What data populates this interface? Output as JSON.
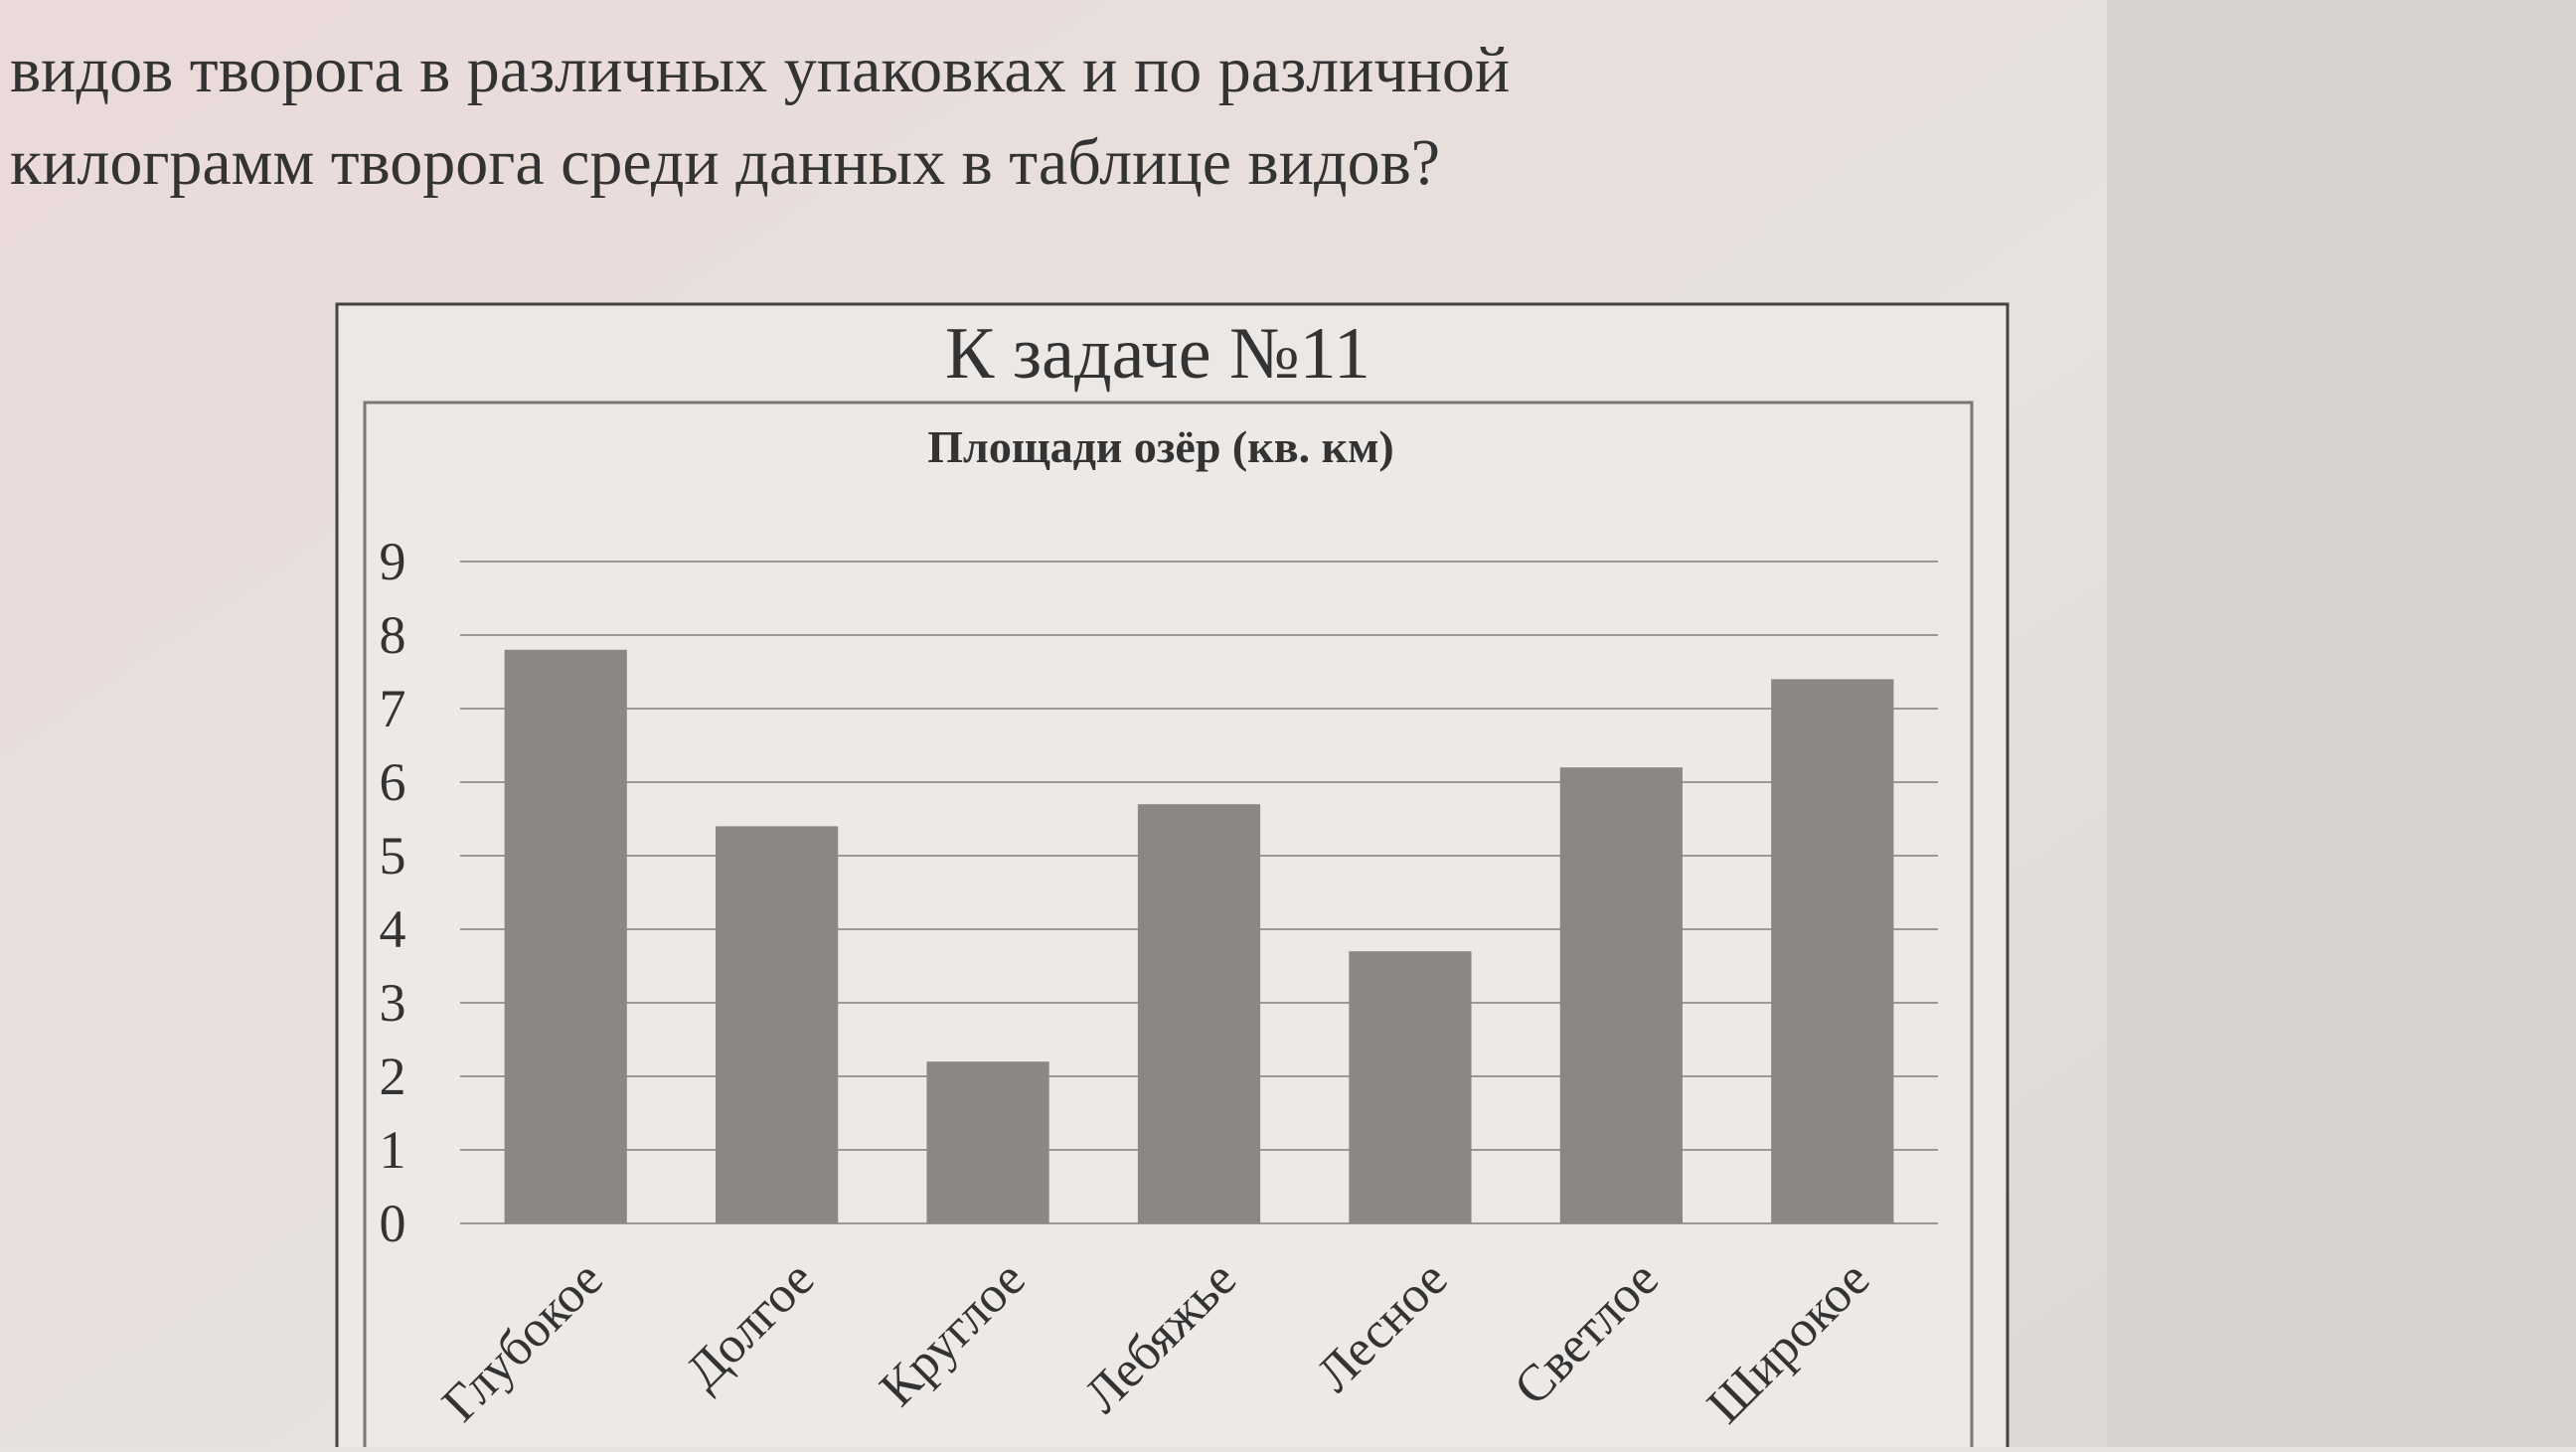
{
  "header": {
    "lines": [
      "видов творога в различных упаковках и по различной",
      "килограмм творога среди данных в таблице видов?"
    ],
    "caption": "К задаче №11"
  },
  "chart_data": {
    "type": "bar",
    "title": "Площади озёр (кв. км)",
    "categories": [
      "Глубокое",
      "Долгое",
      "Круглое",
      "Лебяжье",
      "Лесное",
      "Светлое",
      "Широкое"
    ],
    "values": [
      7.8,
      5.4,
      2.2,
      5.7,
      3.7,
      6.2,
      7.4
    ],
    "color": "#8a8784",
    "ylim": [
      0,
      9
    ],
    "yticks": [
      0,
      1,
      2,
      3,
      4,
      5,
      6,
      7,
      8,
      9
    ],
    "grid": true
  }
}
